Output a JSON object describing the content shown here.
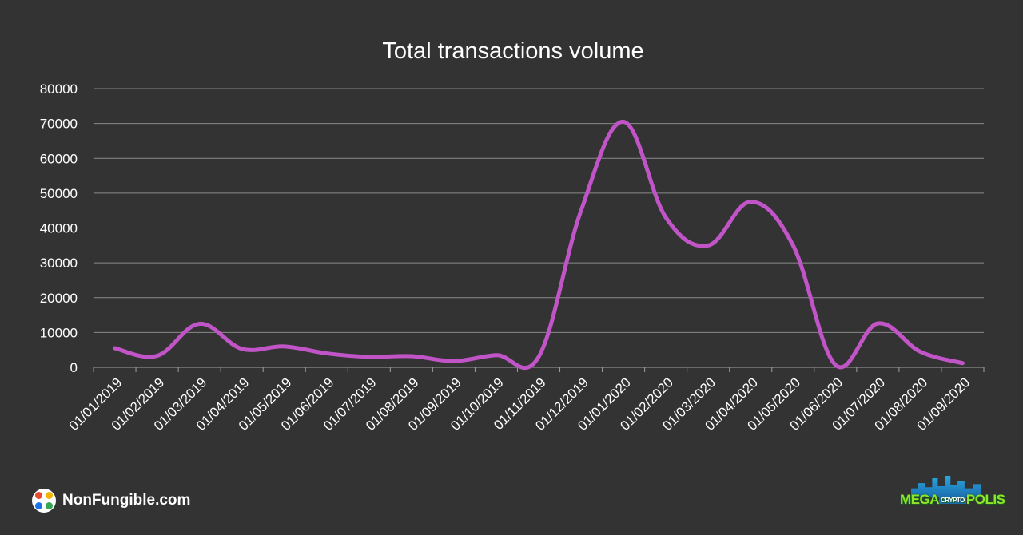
{
  "chart_data": {
    "type": "line",
    "title": "Total transactions volume",
    "xlabel": "",
    "ylabel": "",
    "ylim": [
      0,
      80000
    ],
    "yticks": [
      0,
      10000,
      20000,
      30000,
      40000,
      50000,
      60000,
      70000,
      80000
    ],
    "grid": true,
    "legend": "none",
    "categories": [
      "01/01/2019",
      "01/02/2019",
      "01/03/2019",
      "01/04/2019",
      "01/05/2019",
      "01/06/2019",
      "01/07/2019",
      "01/08/2019",
      "01/09/2019",
      "01/10/2019",
      "01/11/2019",
      "01/12/2019",
      "01/01/2020",
      "01/02/2020",
      "01/03/2020",
      "01/04/2020",
      "01/05/2020",
      "01/06/2020",
      "01/07/2020",
      "01/08/2020",
      "01/09/2020"
    ],
    "series": [
      {
        "color": "#c155c8",
        "values": [
          5500,
          3300,
          12500,
          5300,
          6000,
          4000,
          3000,
          3200,
          1800,
          3500,
          3000,
          45000,
          70500,
          43000,
          35000,
          47500,
          35000,
          700,
          12600,
          4500,
          1200
        ]
      }
    ]
  },
  "branding": {
    "left_logo_text": "NonFungible.com",
    "right_logo_main": "MEGA",
    "right_logo_mid": "CRYPTO",
    "right_logo_end": "POLIS",
    "right_logo_icon": "city-skyline-icon"
  }
}
